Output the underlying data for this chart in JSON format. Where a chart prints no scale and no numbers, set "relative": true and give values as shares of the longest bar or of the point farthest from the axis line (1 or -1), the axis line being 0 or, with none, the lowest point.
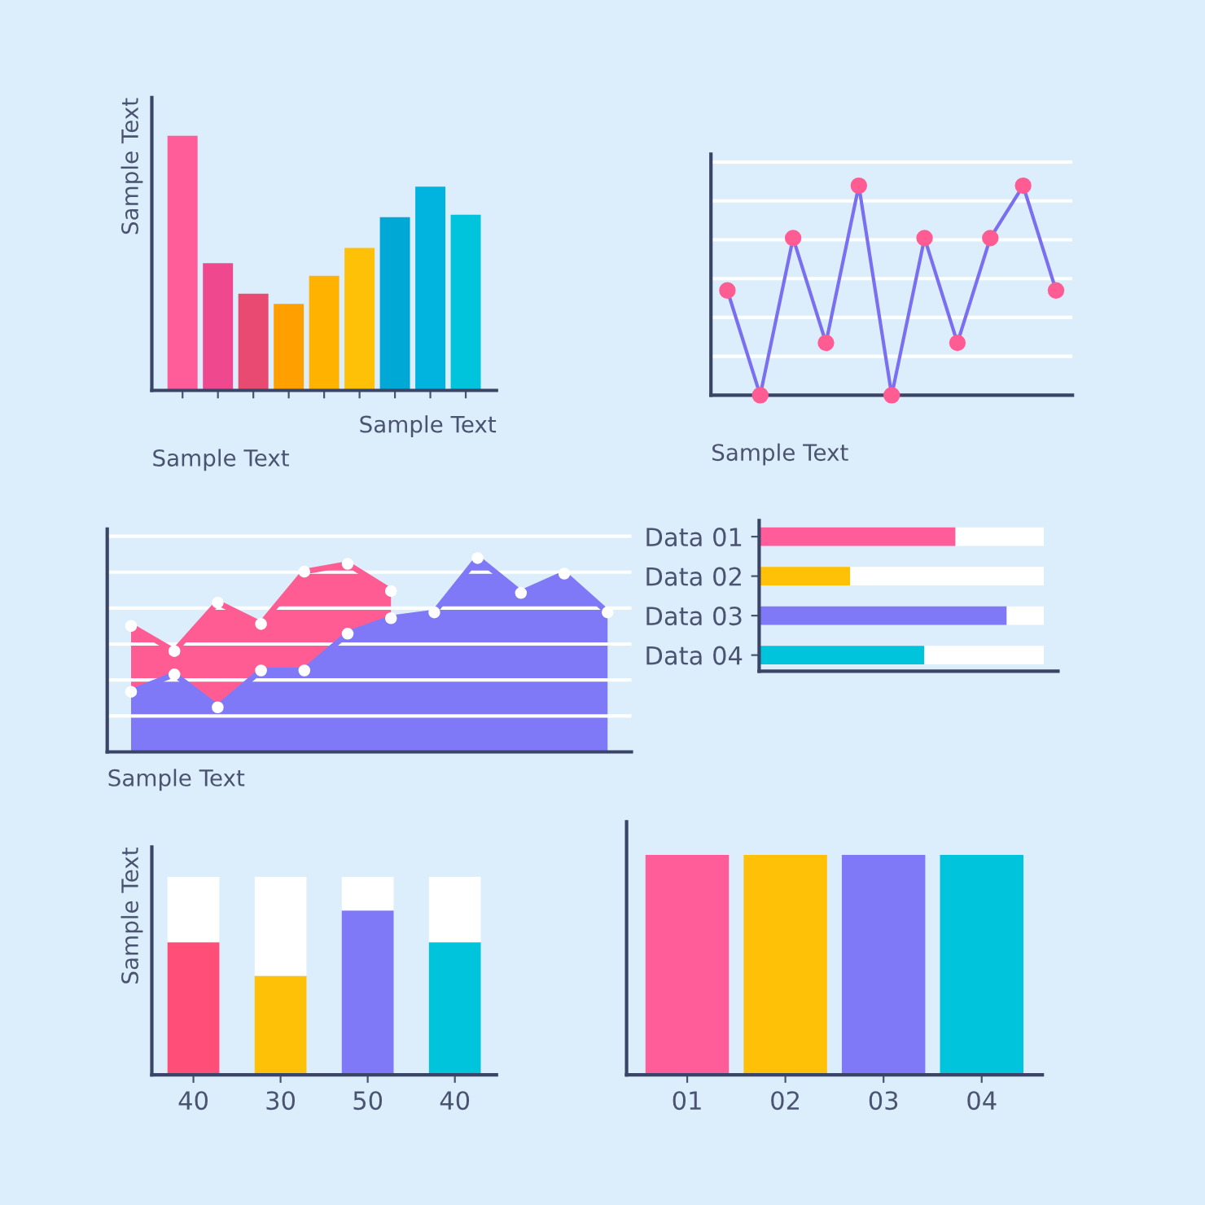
{
  "chart_data": [
    {
      "type": "bar",
      "relative": true,
      "xlabel": "Sample Text",
      "ylabel": "Sample Text",
      "annotations": [
        "Sample Text"
      ],
      "categories": [
        null,
        null,
        null,
        null,
        null,
        null,
        null,
        null,
        null
      ],
      "values": [
        1,
        0.5,
        0.38,
        0.34,
        0.45,
        0.56,
        0.68,
        0.8,
        0.69
      ],
      "colors": [
        "#ff5c9a",
        "#f0488f",
        "#e84a72",
        "#ffa000",
        "#ffb300",
        "#ffc107",
        "#00a8d6",
        "#00b4e0",
        "#00c4dc"
      ]
    },
    {
      "type": "line",
      "relative": true,
      "grid": "y",
      "marker": "circle",
      "annotations": [
        "Sample Text"
      ],
      "categories": [
        null,
        null,
        null,
        null,
        null,
        null,
        null,
        null,
        null,
        null,
        null
      ],
      "series": [
        {
          "color": "#7a6ff0",
          "colors": [
            "#ff5c93",
            "#ff5c93",
            "#ff5c93",
            "#ff5c93",
            "#ff5c93",
            "#ff5c93",
            "#ff5c93",
            "#ff5c93",
            "#ff5c93",
            "#ff5c93",
            "#ff5c93"
          ],
          "values": [
            0.5,
            0,
            0.75,
            0.25,
            1,
            0,
            0.75,
            0.25,
            0.75,
            1,
            0.5
          ]
        }
      ]
    },
    {
      "type": "area",
      "relative": true,
      "grid": "y",
      "marker": "circle",
      "xlabel": "Sample Text",
      "categories": [
        null,
        null,
        null,
        null,
        null,
        null,
        null,
        null,
        null,
        null,
        null,
        null
      ],
      "series": [
        {
          "color": "#ff5c93",
          "values": [
            0.65,
            0.52,
            0.77,
            0.66,
            0.93,
            0.97,
            0.83,
            null,
            null,
            null,
            null,
            null
          ]
        },
        {
          "color": "#8079f7",
          "values": [
            0.31,
            0.4,
            0.23,
            0.42,
            0.42,
            0.61,
            0.69,
            0.72,
            1,
            0.82,
            0.92,
            0.72
          ]
        }
      ]
    },
    {
      "type": "bar",
      "relative": true,
      "orientation": "horizontal",
      "stacked": true,
      "categories": [
        "Data 01",
        "Data 02",
        "Data 03",
        "Data 04"
      ],
      "series": [
        {
          "colors": [
            "#ff5c9a",
            "#ffc107",
            "#8079f7",
            "#00c4dc"
          ],
          "values": [
            0.69,
            0.32,
            0.87,
            0.58
          ]
        },
        {
          "color": "#ffffff",
          "values": [
            0.31,
            0.68,
            0.13,
            0.42
          ]
        }
      ]
    },
    {
      "type": "bar",
      "relative": true,
      "stacked": true,
      "ylabel": "Sample Text",
      "categories": [
        "40",
        "30",
        "50",
        "40"
      ],
      "series": [
        {
          "colors": [
            "#ff4f78",
            "#ffc107",
            "#8079f7",
            "#00c4dc"
          ],
          "values": [
            0.67,
            0.5,
            0.83,
            0.67
          ]
        },
        {
          "color": "#ffffff",
          "values": [
            0.33,
            0.5,
            0.17,
            0.33
          ]
        }
      ]
    },
    {
      "type": "bar",
      "relative": true,
      "categories": [
        "01",
        "02",
        "03",
        "04"
      ],
      "values": [
        1,
        1,
        1,
        1
      ],
      "colors": [
        "#ff5c9a",
        "#ffc107",
        "#8079f7",
        "#00c4dc"
      ]
    }
  ]
}
